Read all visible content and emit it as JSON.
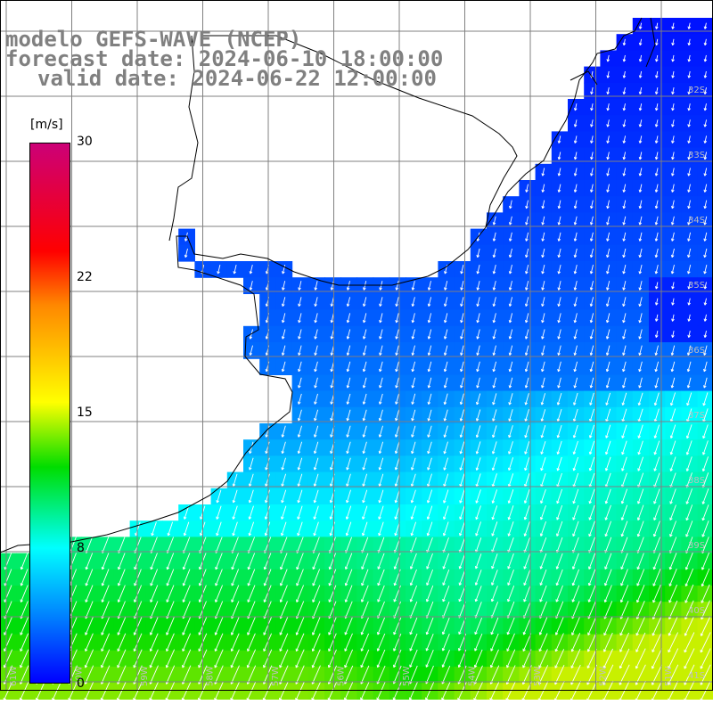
{
  "title": {
    "line1": "modelo GEFS-WAVE (NCEP)",
    "line2": "forecast date: 2024-06-10 18:00:00",
    "line3": "valid date: 2024-06-22 12:00:00"
  },
  "colorbar": {
    "units": "[m/s]",
    "ticks": [
      "30",
      "22",
      "15",
      "8",
      "0"
    ],
    "colors": [
      "#cc0077",
      "#ff0000",
      "#ff8800",
      "#ffff00",
      "#00dd00",
      "#00ffff",
      "#0088ff",
      "#0000ff"
    ]
  },
  "lat_labels": [
    "32S",
    "33S",
    "34S",
    "35S",
    "36S",
    "37S",
    "38S",
    "39S",
    "40S",
    "41S"
  ],
  "lon_labels": [
    "61W",
    "60W",
    "59W",
    "58W",
    "57W",
    "56W",
    "55W",
    "54W",
    "53W",
    "52W",
    "51W"
  ]
}
